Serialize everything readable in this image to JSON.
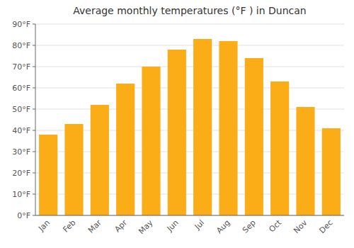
{
  "chart_data": {
    "type": "bar",
    "title": "Average monthly temperatures (°F ) in Duncan",
    "categories": [
      "Jan",
      "Feb",
      "Mar",
      "Apr",
      "May",
      "Jun",
      "Jul",
      "Aug",
      "Sep",
      "Oct",
      "Nov",
      "Dec"
    ],
    "values": [
      38,
      43,
      52,
      62,
      70,
      78,
      83,
      82,
      74,
      63,
      51,
      41
    ],
    "color": "#FBAD18",
    "ylim": [
      0,
      90
    ],
    "yticks": [
      {
        "value": 0,
        "label": "0°F"
      },
      {
        "value": 10,
        "label": "10°F"
      },
      {
        "value": 20,
        "label": "20°F"
      },
      {
        "value": 30,
        "label": "30°F"
      },
      {
        "value": 40,
        "label": "40°F"
      },
      {
        "value": 50,
        "label": "50°F"
      },
      {
        "value": 60,
        "label": "60°F"
      },
      {
        "value": 70,
        "label": "70°F"
      },
      {
        "value": 80,
        "label": "80°F"
      },
      {
        "value": 90,
        "label": "90°F"
      }
    ],
    "grid": true
  }
}
